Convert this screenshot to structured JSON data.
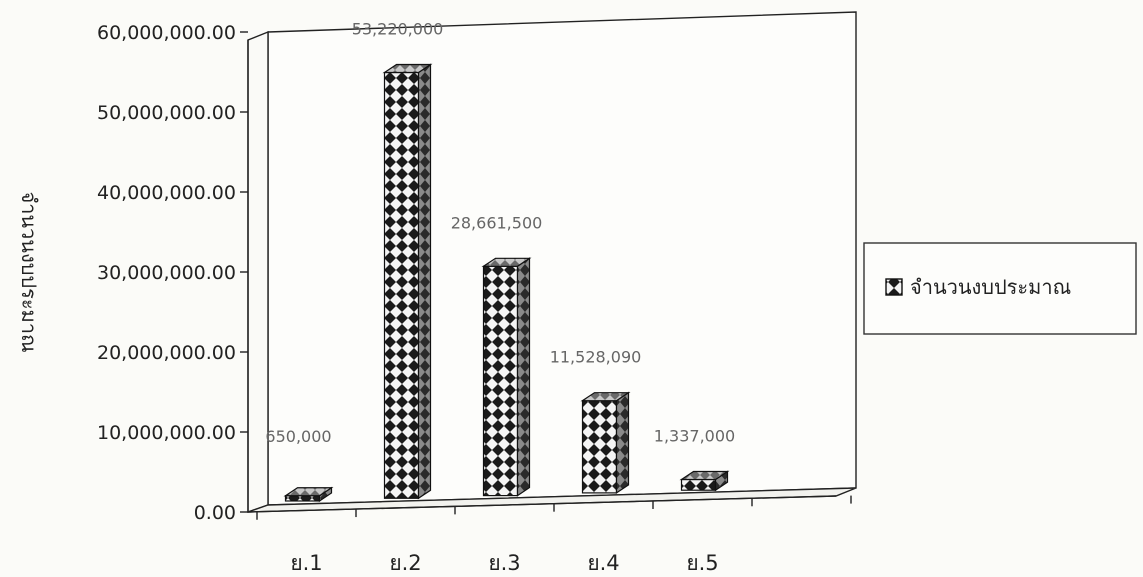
{
  "chart_data": {
    "type": "bar",
    "categories": [
      "ย.1",
      "ย.2",
      "ย.3",
      "ย.4",
      "ย.5"
    ],
    "values": [
      650000,
      53220000,
      28661500,
      11528090,
      1337000
    ],
    "data_labels": [
      "650,000",
      "53,220,000",
      "28,661,500",
      "11,528,090",
      "1,337,000"
    ],
    "series": [
      {
        "name": "จำนวนงบประมาณ",
        "values": [
          650000,
          53220000,
          28661500,
          11528090,
          1337000
        ]
      }
    ],
    "ylabel": "จำนวนงบประมาณ",
    "ylim": [
      0,
      60000000
    ],
    "yticks": [
      0,
      10000000,
      20000000,
      30000000,
      40000000,
      50000000,
      60000000
    ],
    "ytick_labels": [
      "0.00",
      "10,000,000.00",
      "20,000,000.00",
      "30,000,000.00",
      "40,000,000.00",
      "50,000,000.00",
      "60,000,000.00"
    ],
    "legend_position": "right",
    "style": "3d-checkered-columns"
  }
}
